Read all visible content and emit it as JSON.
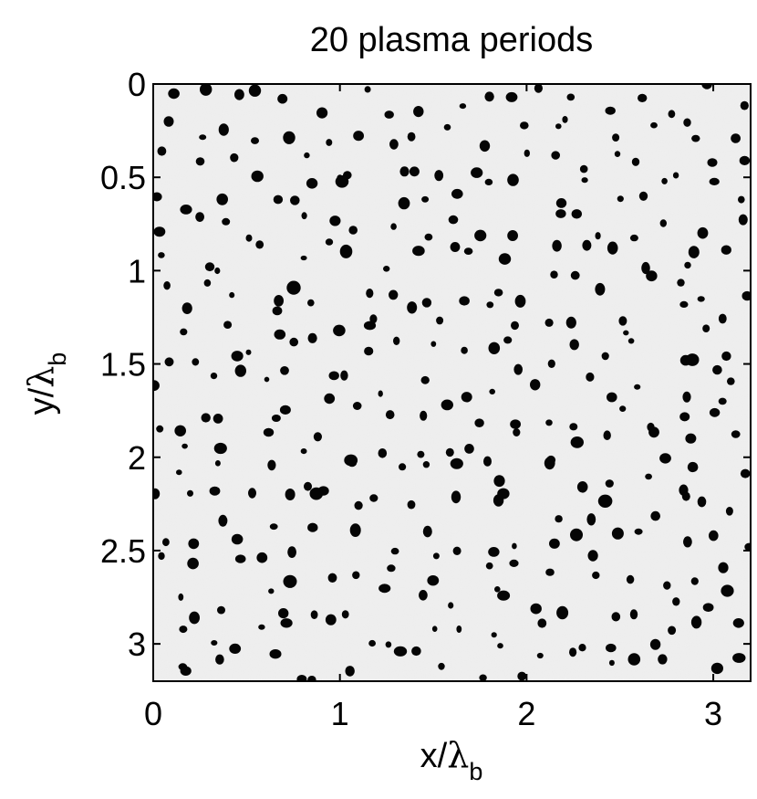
{
  "chart_data": {
    "type": "heatmap",
    "title": "20 plasma periods",
    "xlabel": {
      "prefix": "x/",
      "symbol": "λ",
      "sub": "b"
    },
    "ylabel": {
      "prefix": "y/",
      "symbol": "λ",
      "sub": "b"
    },
    "xlim": [
      0,
      3.2
    ],
    "ylim": [
      3.2,
      0
    ],
    "y_axis_inverted": true,
    "x_ticks": [
      "0",
      "1",
      "2",
      "3"
    ],
    "x_tick_values": [
      0,
      1,
      2,
      3
    ],
    "y_ticks": [
      "0",
      "0.5",
      "1",
      "1.5",
      "2",
      "2.5",
      "3"
    ],
    "y_tick_values": [
      0,
      0.5,
      1,
      1.5,
      2,
      2.5,
      3
    ],
    "colormap": "grayscale",
    "colors": {
      "background": "#f0f0f0",
      "blob": "#050505"
    },
    "description_values": {
      "blob_count_approx": 360,
      "blob_radius_range": [
        0.015,
        0.032
      ]
    }
  }
}
